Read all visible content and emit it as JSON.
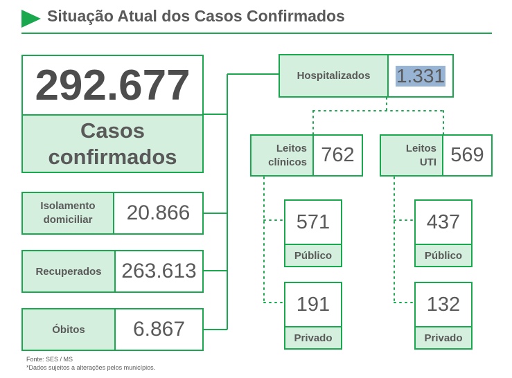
{
  "header": {
    "title": "Situação Atual dos Casos Confirmados",
    "accent_color": "#1aa84e",
    "icon": "play-triangle-icon"
  },
  "main": {
    "value": "292.677",
    "label": "Casos confirmados"
  },
  "isolamento": {
    "label": "Isolamento domiciliar",
    "value": "20.866"
  },
  "recuperados": {
    "label": "Recuperados",
    "value": "263.613"
  },
  "obitos": {
    "label": "Óbitos",
    "value": "6.867"
  },
  "hospitalizados": {
    "label": "Hospitalizados",
    "value": "1.331"
  },
  "leitos_clinicos": {
    "label": "Leitos clínicos",
    "value": "762",
    "publico": {
      "value": "571",
      "label": "Público"
    },
    "privado": {
      "value": "191",
      "label": "Privado"
    }
  },
  "leitos_uti": {
    "label": "Leitos UTI",
    "value": "569",
    "publico": {
      "value": "437",
      "label": "Público"
    },
    "privado": {
      "value": "132",
      "label": "Privado"
    }
  },
  "footer": {
    "source": "Fonte: SES / MS",
    "note": "*Dados sujeitos a alterações pelos municípios."
  }
}
